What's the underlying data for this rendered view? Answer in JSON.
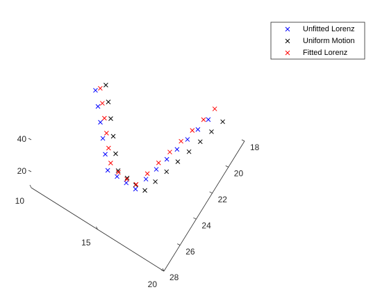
{
  "chart_data": {
    "type": "scatter3",
    "xlim": [
      10,
      20
    ],
    "xticks": [
      10,
      15,
      20
    ],
    "ylim": [
      18,
      28
    ],
    "yticks": [
      18,
      20,
      22,
      24,
      26,
      28
    ],
    "zlim": [
      10,
      50
    ],
    "zticks": [
      20,
      40
    ],
    "legend": "northeast",
    "series": [
      {
        "name": "Unfitted Lorenz",
        "color": "#0000ff",
        "x": [
          11.5,
          11.96,
          12.41,
          12.87,
          13.32,
          13.78,
          14.51,
          15.24,
          15.97,
          16.24,
          16.51,
          16.78,
          17.04,
          17.31,
          17.58,
          17.85
        ],
        "y": [
          22.5,
          22.95,
          23.39,
          23.84,
          24.28,
          24.73,
          24.78,
          24.84,
          24.89,
          24.04,
          23.2,
          22.34,
          21.5,
          20.65,
          19.8,
          18.95
        ],
        "z": [
          34,
          30,
          26,
          22,
          18,
          14,
          14.33,
          14.67,
          15,
          15.71,
          16.43,
          17.14,
          17.86,
          18.57,
          19.29,
          20
        ]
      },
      {
        "name": "Uniform Motion",
        "color": "#000000",
        "x": [
          12.1,
          12.56,
          13.01,
          13.47,
          13.92,
          14.38,
          15.1,
          15.8,
          16.5,
          16.8,
          17.1,
          17.4,
          17.7,
          18.0,
          18.3,
          18.6
        ],
        "y": [
          22.2,
          22.65,
          23.09,
          23.54,
          23.98,
          24.43,
          24.5,
          24.6,
          24.6,
          23.8,
          22.9,
          22.0,
          21.1,
          20.2,
          19.3,
          18.4
        ],
        "z": [
          38,
          33.5,
          29,
          24,
          19,
          14.5,
          14.2,
          14.4,
          14.6,
          15.1,
          15.6,
          16.1,
          16.6,
          17.1,
          17.6,
          18.1
        ]
      },
      {
        "name": "Fitted Lorenz",
        "color": "#ff0000",
        "x": [
          11.8,
          12.2,
          12.6,
          13.0,
          13.4,
          13.8,
          14.5,
          15.2,
          15.9,
          16.2,
          16.5,
          16.8,
          17.1,
          17.4,
          17.7,
          18.0
        ],
        "y": [
          22.4,
          22.8,
          23.2,
          23.6,
          24.0,
          24.4,
          24.6,
          24.7,
          24.7,
          23.8,
          22.9,
          22.0,
          21.1,
          20.2,
          19.3,
          18.4
        ],
        "z": [
          36,
          32,
          28,
          24,
          20,
          16,
          15.5,
          15.6,
          16,
          17,
          18,
          19,
          20,
          21,
          22,
          23
        ]
      }
    ]
  }
}
